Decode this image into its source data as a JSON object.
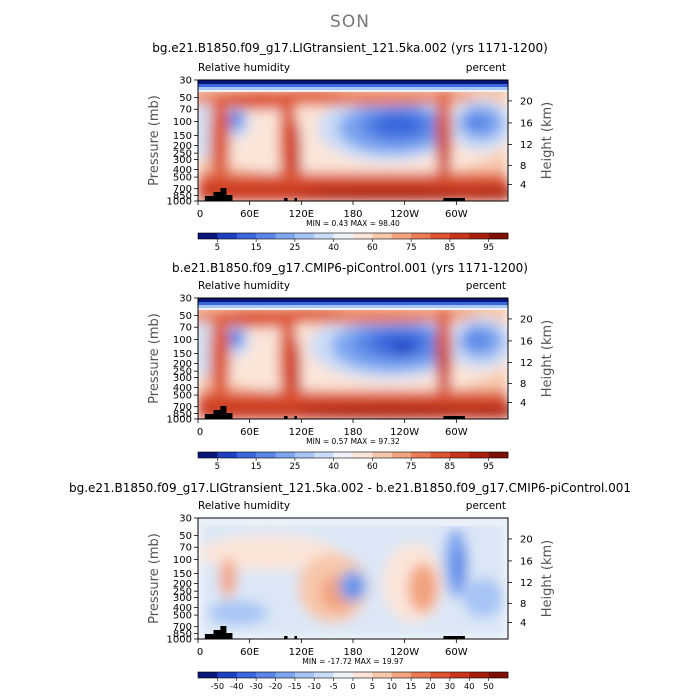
{
  "page_title": "SON",
  "chart_data": [
    {
      "type": "heatmap",
      "title": "bg.e21.B1850.f09_g17.LIGtransient_121.5ka.002 (yrs 1171-1200)",
      "left_label": "Relative humidity",
      "right_label": "percent",
      "ylabel": "Pressure (mb)",
      "ylabel_right": "Height (km)",
      "y_ticks": [
        "30",
        "50",
        "70",
        "100",
        "150",
        "200",
        "250",
        "300",
        "400",
        "500",
        "700",
        "850",
        "1000"
      ],
      "y_ticks_right": [
        "20",
        "16",
        "12",
        "8",
        "4"
      ],
      "x_ticks": [
        "0",
        "60E",
        "120E",
        "180",
        "120W",
        "60W"
      ],
      "stats": "MIN =    0.43   MAX =   98.40",
      "colorbar_labels": [
        "5",
        "15",
        "25",
        "40",
        "60",
        "75",
        "85",
        "95"
      ],
      "ylim": [
        1000,
        30
      ],
      "xlim": [
        0,
        360
      ]
    },
    {
      "type": "heatmap",
      "title": "b.e21.B1850.f09_g17.CMIP6-piControl.001 (yrs 1171-1200)",
      "left_label": "Relative humidity",
      "right_label": "percent",
      "ylabel": "Pressure (mb)",
      "ylabel_right": "Height (km)",
      "y_ticks": [
        "30",
        "50",
        "70",
        "100",
        "150",
        "200",
        "250",
        "300",
        "400",
        "500",
        "700",
        "850",
        "1000"
      ],
      "y_ticks_right": [
        "20",
        "16",
        "12",
        "8",
        "4"
      ],
      "x_ticks": [
        "0",
        "60E",
        "120E",
        "180",
        "120W",
        "60W"
      ],
      "stats": "MIN =    0.57   MAX =   97.32",
      "colorbar_labels": [
        "5",
        "15",
        "25",
        "40",
        "60",
        "75",
        "85",
        "95"
      ],
      "ylim": [
        1000,
        30
      ],
      "xlim": [
        0,
        360
      ]
    },
    {
      "type": "heatmap",
      "title": "bg.e21.B1850.f09_g17.LIGtransient_121.5ka.002 - b.e21.B1850.f09_g17.CMIP6-piControl.001",
      "left_label": "Relative humidity",
      "right_label": "percent",
      "ylabel": "Pressure (mb)",
      "ylabel_right": "Height (km)",
      "y_ticks": [
        "30",
        "50",
        "70",
        "100",
        "150",
        "200",
        "250",
        "300",
        "400",
        "500",
        "700",
        "850",
        "1000"
      ],
      "y_ticks_right": [
        "20",
        "16",
        "12",
        "8",
        "4"
      ],
      "x_ticks": [
        "0",
        "60E",
        "120E",
        "180",
        "120W",
        "60W"
      ],
      "stats": "MIN =  -17.72   MAX =   19.97",
      "colorbar_labels": [
        "-50",
        "-40",
        "-30",
        "-20",
        "-15",
        "-10",
        "-5",
        "0",
        "5",
        "10",
        "15",
        "20",
        "30",
        "40",
        "50"
      ],
      "ylim": [
        1000,
        30
      ],
      "xlim": [
        0,
        360
      ]
    }
  ],
  "colors": {
    "rh_scale": [
      "#08167a",
      "#1d3fc0",
      "#3b66dc",
      "#5a86e6",
      "#7ea6ef",
      "#a6c4f4",
      "#cadcf7",
      "#eef2f8",
      "#fbe5d9",
      "#f7c7ab",
      "#f2a380",
      "#ea7c55",
      "#dd5533",
      "#c8351c",
      "#a81f0c",
      "#7e0f03"
    ],
    "diff_scale": [
      "#08167a",
      "#1d3fc0",
      "#3b66dc",
      "#5a86e6",
      "#7ea6ef",
      "#a6c4f4",
      "#cadcf7",
      "#eef2f8",
      "#fbe5d9",
      "#f7c7ab",
      "#f2a380",
      "#ea7c55",
      "#dd5533",
      "#c8351c",
      "#a81f0c",
      "#7e0f03"
    ],
    "terrain": "#000000"
  }
}
